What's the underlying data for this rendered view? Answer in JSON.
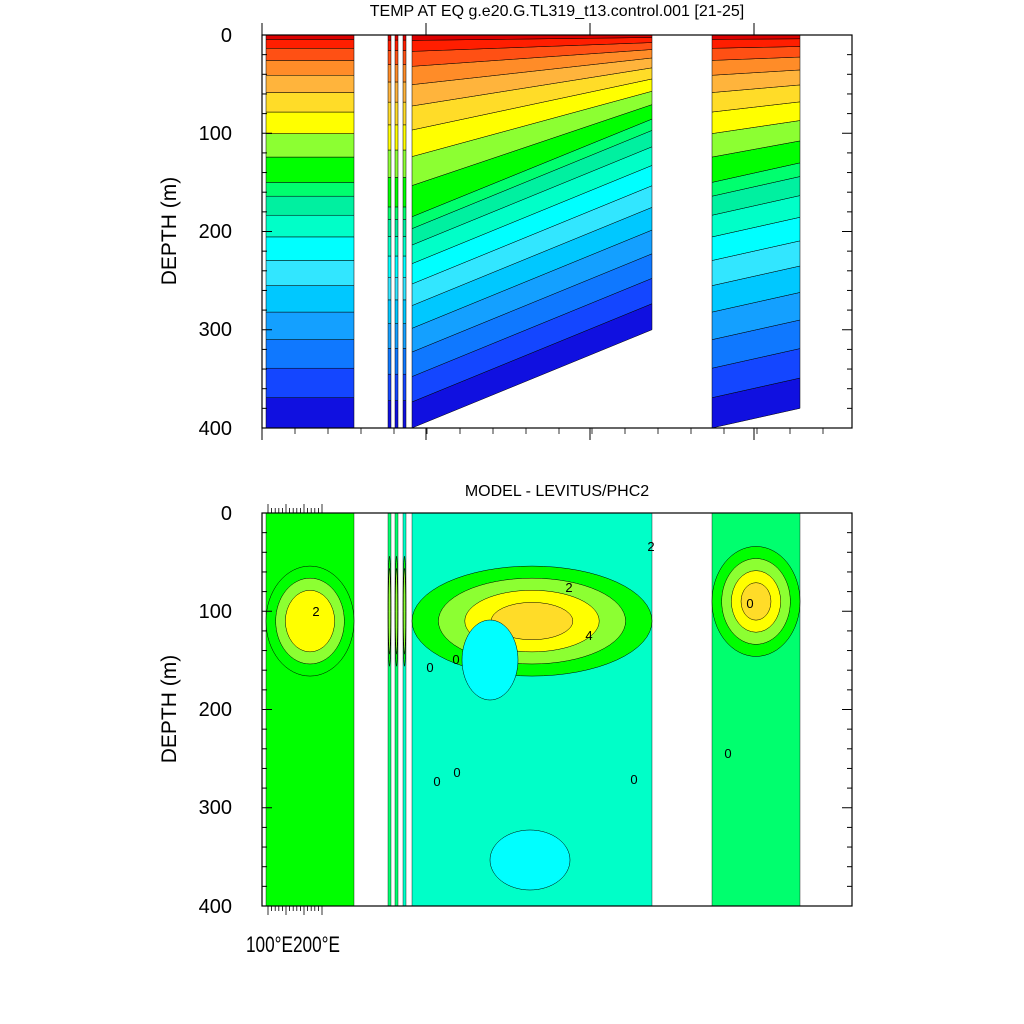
{
  "chart_data": [
    {
      "type": "heatmap",
      "title": "TEMP AT EQ g.e20.G.TL319_t13.control.001 [21-25]",
      "ylabel": "DEPTH (m)",
      "ylim": [
        0,
        400
      ],
      "y_reversed": true,
      "yticks": [
        "0",
        "100",
        "200",
        "300",
        "400"
      ],
      "colors": [
        "#1010e0",
        "#1446ff",
        "#0f78ff",
        "#14a0ff",
        "#00c8ff",
        "#32e6ff",
        "#00ffff",
        "#00ffc8",
        "#00f0a0",
        "#00ff6e",
        "#00ff00",
        "#8cff32",
        "#ffff00",
        "#ffdc28",
        "#ffb43c",
        "#ff8c28",
        "#ff5014",
        "#ff1e00",
        "#dc0000"
      ],
      "basins": [
        {
          "water_top": 0,
          "surface_level": 18,
          "thermocline_depth": 150,
          "tilt": 0
        },
        {
          "water_top": 0,
          "surface_level": 18,
          "thermocline_depth": 175,
          "tilt": 0
        },
        {
          "water_top": 0,
          "surface_level": 18,
          "thermocline_depth": 160,
          "tilt": 0
        },
        {
          "water_top": 0,
          "surface_level": 17,
          "thermocline_depth": 185,
          "tilt": -100
        },
        {
          "water_top": 0,
          "surface_level": 15,
          "thermocline_depth": 150,
          "tilt": -20
        }
      ]
    },
    {
      "type": "heatmap",
      "title": "MODEL - LEVITUS/PHC2",
      "ylabel": "DEPTH (m)",
      "ylim": [
        0,
        400
      ],
      "y_reversed": true,
      "yticks": [
        "0",
        "100",
        "200",
        "300",
        "400"
      ],
      "xtick_label": "100°E200°E",
      "colors": [
        "#00ffff",
        "#00ffc8",
        "#00f0a0",
        "#00ff6e",
        "#00ff00",
        "#8cff32",
        "#ffff00",
        "#ffdc28"
      ],
      "contour_labels": [
        "2",
        "0",
        "0",
        "0",
        "2",
        "4",
        "2",
        "0",
        "0",
        "0",
        "0"
      ],
      "basins": [
        {
          "water_top": 0,
          "anomaly_peak_depth": 110,
          "anomaly_peak": 3
        },
        {
          "water_top": 0,
          "anomaly_peak_depth": 100,
          "anomaly_peak": 2
        },
        {
          "water_top": 0,
          "anomaly_peak_depth": 60,
          "anomaly_peak": 1
        },
        {
          "water_top": 0,
          "anomaly_peak_depth": 110,
          "anomaly_peak": 4
        },
        {
          "water_top": 0,
          "anomaly_peak_depth": 90,
          "anomaly_peak": 4
        }
      ]
    }
  ]
}
